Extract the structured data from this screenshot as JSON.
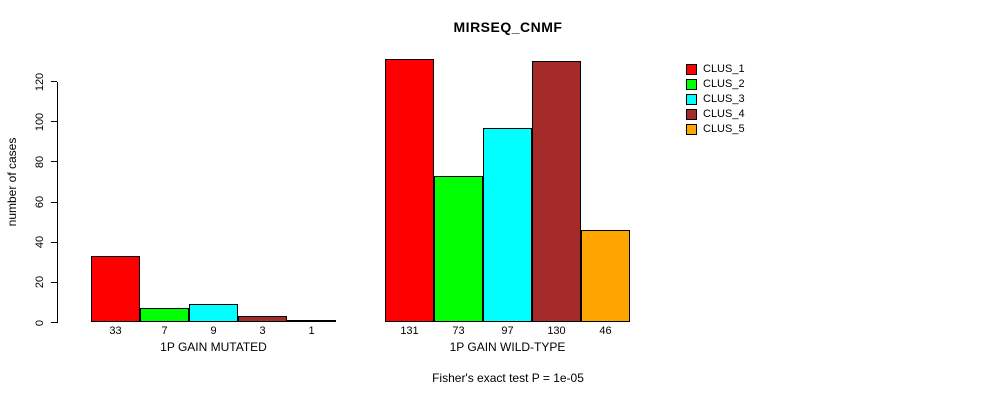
{
  "title": "MIRSEQ_CNMF",
  "caption": "Fisher's exact test P = 1e-05",
  "chart_data": {
    "type": "bar",
    "title": "MIRSEQ_CNMF",
    "xlabel": "",
    "ylabel": "number of cases",
    "categories": [
      "1P GAIN MUTATED",
      "1P GAIN WILD-TYPE"
    ],
    "series": [
      {
        "name": "CLUS_1",
        "color": "#FF0000",
        "values": [
          33,
          131
        ]
      },
      {
        "name": "CLUS_2",
        "color": "#00FF00",
        "values": [
          7,
          73
        ]
      },
      {
        "name": "CLUS_3",
        "color": "#00FFFF",
        "values": [
          9,
          97
        ]
      },
      {
        "name": "CLUS_4",
        "color": "#A52A2A",
        "values": [
          3,
          130
        ]
      },
      {
        "name": "CLUS_5",
        "color": "#FFA500",
        "values": [
          1,
          46
        ]
      }
    ],
    "bar_value_labels": [
      [
        "33",
        "7",
        "9",
        "3",
        "1"
      ],
      [
        "131",
        "73",
        "97",
        "130",
        "46"
      ]
    ],
    "yticks": [
      0,
      20,
      40,
      60,
      80,
      100,
      120
    ],
    "ylim": [
      0,
      131
    ],
    "grid": false,
    "legend_position": "right",
    "annotation": "Fisher's exact test P = 1e-05"
  }
}
